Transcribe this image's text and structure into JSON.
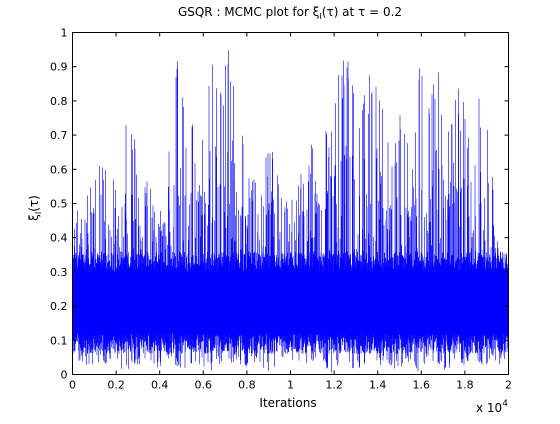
{
  "chart_data": {
    "type": "line",
    "title_prefix": "GSQR : MCMC plot for ",
    "title_sym": "ξ",
    "title_sub": "I",
    "title_mid": "(τ) at τ = 0.2",
    "ylabel_sym": "ξ",
    "ylabel_sub": "I",
    "ylabel_rest": "(τ)",
    "xlabel": "Iterations",
    "x_multiplier_label": "x 10",
    "x_multiplier_exp": "4",
    "xlim": [
      0,
      20000
    ],
    "ylim": [
      0,
      1
    ],
    "xticks": [
      0,
      2000,
      4000,
      6000,
      8000,
      10000,
      12000,
      14000,
      16000,
      18000,
      20000
    ],
    "xtick_labels": [
      "0",
      "0.2",
      "0.4",
      "0.6",
      "0.8",
      "1",
      "1.2",
      "1.4",
      "1.6",
      "1.8",
      "2"
    ],
    "yticks": [
      0,
      0.1,
      0.2,
      0.3,
      0.4,
      0.5,
      0.6,
      0.7,
      0.8,
      0.9,
      1
    ],
    "ytick_labels": [
      "0",
      "0.1",
      "0.2",
      "0.3",
      "0.4",
      "0.5",
      "0.6",
      "0.7",
      "0.8",
      "0.9",
      "1"
    ],
    "grid": false,
    "series": [
      {
        "color": "#0000ff",
        "n_iterations": 20000,
        "envelope_x": [
          0,
          200,
          500,
          900,
          1300,
          1700,
          2000,
          2300,
          2700,
          3100,
          3500,
          3900,
          4300,
          4600,
          4900,
          5300,
          5600,
          6000,
          6400,
          6800,
          7200,
          7500,
          7900,
          8300,
          8700,
          9100,
          9500,
          9900,
          10300,
          10700,
          11100,
          11500,
          11900,
          12300,
          12700,
          13100,
          13500,
          13900,
          14300,
          14700,
          15100,
          15500,
          15900,
          16300,
          16700,
          17100,
          17500,
          17900,
          18300,
          18700,
          19100,
          19500,
          20000
        ],
        "envelope_max": [
          0.38,
          0.62,
          0.45,
          0.65,
          0.6,
          0.75,
          0.52,
          0.8,
          0.76,
          0.55,
          0.58,
          0.46,
          0.7,
          0.82,
          0.98,
          0.62,
          0.9,
          0.68,
          0.98,
          0.88,
          1.0,
          0.85,
          0.65,
          0.58,
          0.62,
          0.7,
          0.55,
          0.5,
          0.58,
          0.62,
          0.75,
          0.68,
          0.8,
          0.92,
          0.97,
          0.8,
          0.88,
          0.95,
          0.72,
          0.66,
          0.86,
          0.62,
          0.98,
          0.8,
          0.98,
          0.74,
          0.88,
          0.82,
          0.62,
          0.85,
          0.72,
          0.4,
          0.35
        ],
        "envelope_min": [
          0.04,
          0.02,
          0.03,
          0.01,
          0.04,
          0.02,
          0.03,
          0.0,
          0.02,
          0.03,
          0.02,
          0.01,
          0.05,
          0.03,
          0.02,
          0.01,
          0.04,
          0.02,
          0.01,
          0.03,
          0.02,
          0.04,
          0.01,
          0.03,
          0.02,
          0.0,
          0.03,
          0.02,
          0.04,
          0.01,
          0.03,
          0.02,
          0.0,
          0.03,
          0.02,
          0.01,
          0.04,
          0.02,
          0.03,
          0.01,
          0.02,
          0.04,
          0.0,
          0.03,
          0.02,
          0.01,
          0.03,
          0.02,
          0.04,
          0.01,
          0.03,
          0.02,
          0.03
        ],
        "central_band": [
          0.12,
          0.3
        ]
      }
    ]
  }
}
